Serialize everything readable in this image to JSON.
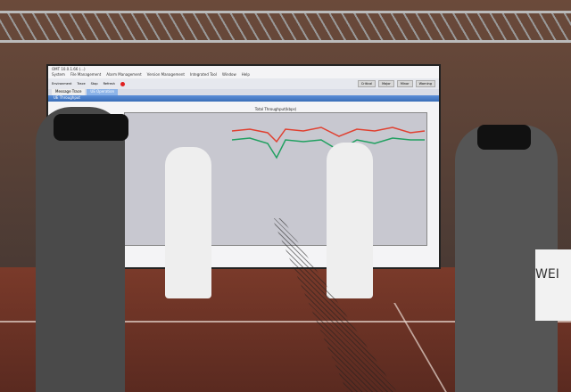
{
  "screen": {
    "window_title": "OMT 10.0.1.66 (...)",
    "menu": [
      "System",
      "File Management",
      "Alarm Management",
      "Version Management",
      "Integrated Tool",
      "Window",
      "Help"
    ],
    "toolbar": [
      "Environment",
      "Trace",
      "Stop",
      "Refresh"
    ],
    "severity_buttons": [
      "Critical",
      "Major",
      "Minor",
      "Warning"
    ],
    "tabs": [
      "Message Trace",
      "UE Operation"
    ],
    "panel_title": "UE Throughput",
    "chart_title": "Total Throughput(kbps)",
    "series_colors": [
      "#e04030",
      "#20a060"
    ]
  },
  "banner_text": "WEI"
}
